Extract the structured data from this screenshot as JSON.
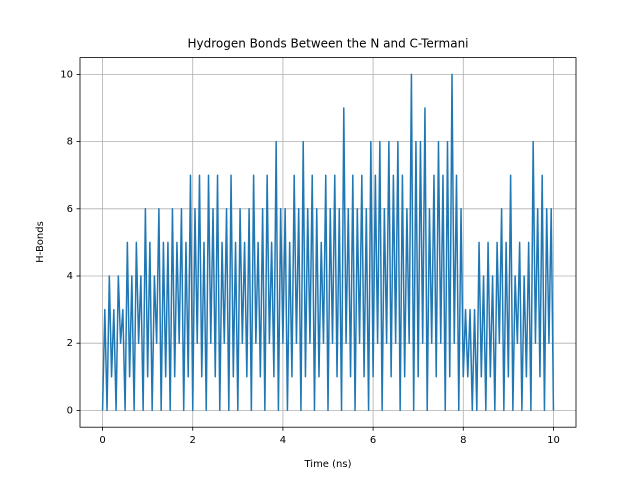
{
  "chart_data": {
    "type": "line",
    "title": "Hydrogen Bonds Between the N and C-Termani",
    "x_label": "Time (ns)",
    "y_label": "H-Bonds",
    "color": "#1f77b4",
    "grid": true,
    "xlim": [
      -0.5,
      10.5
    ],
    "ylim": [
      -0.5,
      10.5
    ],
    "xticks": [
      0,
      2,
      4,
      6,
      8,
      10
    ],
    "yticks": [
      0,
      2,
      4,
      6,
      8,
      10
    ],
    "x": [
      0,
      0.05,
      0.1,
      0.15,
      0.2,
      0.25,
      0.3,
      0.35,
      0.4,
      0.45,
      0.5,
      0.55,
      0.6,
      0.65,
      0.7,
      0.75,
      0.8,
      0.85,
      0.9,
      0.95,
      1,
      1.05,
      1.1,
      1.15,
      1.2,
      1.25,
      1.3,
      1.35,
      1.4,
      1.45,
      1.5,
      1.55,
      1.6,
      1.65,
      1.7,
      1.75,
      1.8,
      1.85,
      1.9,
      1.95,
      2,
      2.05,
      2.1,
      2.15,
      2.2,
      2.25,
      2.3,
      2.35,
      2.4,
      2.45,
      2.5,
      2.55,
      2.6,
      2.65,
      2.7,
      2.75,
      2.8,
      2.85,
      2.9,
      2.95,
      3,
      3.05,
      3.1,
      3.15,
      3.2,
      3.25,
      3.3,
      3.35,
      3.4,
      3.45,
      3.5,
      3.55,
      3.6,
      3.65,
      3.7,
      3.75,
      3.8,
      3.85,
      3.9,
      3.95,
      4,
      4.05,
      4.1,
      4.15,
      4.2,
      4.25,
      4.3,
      4.35,
      4.4,
      4.45,
      4.5,
      4.55,
      4.6,
      4.65,
      4.7,
      4.75,
      4.8,
      4.85,
      4.9,
      4.95,
      5,
      5.05,
      5.1,
      5.15,
      5.2,
      5.25,
      5.3,
      5.35,
      5.4,
      5.45,
      5.5,
      5.55,
      5.6,
      5.65,
      5.7,
      5.75,
      5.8,
      5.85,
      5.9,
      5.95,
      6,
      6.05,
      6.1,
      6.15,
      6.2,
      6.25,
      6.3,
      6.35,
      6.4,
      6.45,
      6.5,
      6.55,
      6.6,
      6.65,
      6.7,
      6.75,
      6.8,
      6.85,
      6.9,
      6.95,
      7,
      7.05,
      7.1,
      7.15,
      7.2,
      7.25,
      7.3,
      7.35,
      7.4,
      7.45,
      7.5,
      7.55,
      7.6,
      7.65,
      7.7,
      7.75,
      7.8,
      7.85,
      7.9,
      7.95,
      8,
      8.05,
      8.1,
      8.15,
      8.2,
      8.25,
      8.3,
      8.35,
      8.4,
      8.45,
      8.5,
      8.55,
      8.6,
      8.65,
      8.7,
      8.75,
      8.8,
      8.85,
      8.9,
      8.95,
      9,
      9.05,
      9.1,
      9.15,
      9.2,
      9.25,
      9.3,
      9.35,
      9.4,
      9.45,
      9.5,
      9.55,
      9.6,
      9.65,
      9.7,
      9.75,
      9.8,
      9.85,
      9.9,
      9.95,
      10
    ],
    "values": [
      0,
      3,
      0,
      4,
      1,
      3,
      0,
      4,
      2,
      3,
      0,
      5,
      1,
      4,
      0,
      5,
      2,
      4,
      0,
      6,
      1,
      5,
      0,
      4,
      2,
      6,
      0,
      5,
      1,
      5,
      0,
      6,
      1,
      5,
      2,
      6,
      0,
      5,
      1,
      7,
      0,
      6,
      2,
      7,
      1,
      5,
      0,
      7,
      2,
      6,
      1,
      7,
      0,
      5,
      2,
      6,
      0,
      7,
      1,
      5,
      0,
      6,
      2,
      5,
      1,
      6,
      0,
      7,
      2,
      5,
      1,
      6,
      0,
      7,
      2,
      5,
      1,
      8,
      0,
      6,
      2,
      6,
      0,
      5,
      1,
      7,
      2,
      6,
      0,
      8,
      1,
      6,
      2,
      7,
      0,
      6,
      1,
      5,
      2,
      7,
      0,
      6,
      2,
      7,
      1,
      6,
      0,
      9,
      2,
      6,
      1,
      7,
      0,
      6,
      2,
      7,
      1,
      6,
      0,
      8,
      1,
      7,
      2,
      8,
      0,
      6,
      2,
      8,
      1,
      7,
      2,
      8,
      0,
      7,
      1,
      6,
      2,
      10,
      0,
      8,
      1,
      8,
      2,
      9,
      0,
      6,
      2,
      7,
      1,
      8,
      2,
      7,
      0,
      8,
      1,
      10,
      2,
      7,
      0,
      6,
      1,
      3,
      1,
      3,
      0,
      3,
      0,
      5,
      1,
      4,
      0,
      5,
      1,
      4,
      0,
      5,
      2,
      6,
      0,
      5,
      1,
      7,
      0,
      4,
      2,
      5,
      0,
      4,
      1,
      5,
      0,
      8,
      2,
      6,
      1,
      7,
      0,
      6,
      2,
      6,
      0
    ]
  }
}
